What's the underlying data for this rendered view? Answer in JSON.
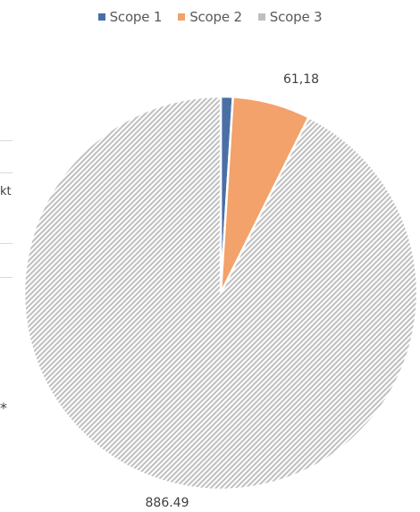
{
  "chart_data": {
    "type": "pie",
    "title": "",
    "series": [
      {
        "name": "Scope 1",
        "value": 9.5,
        "color": "#4a6fa5"
      },
      {
        "name": "Scope 2",
        "value": 61.18,
        "color": "#f2a26a"
      },
      {
        "name": "Scope 3",
        "value": 886.49,
        "color": "#bfbfbf"
      }
    ],
    "data_labels": {
      "scope2": "61,18",
      "scope3": "886.49"
    },
    "legend_position": "top",
    "fill_pattern": "diagonal-hatch"
  },
  "legend": {
    "items": [
      {
        "label": "Scope 1",
        "color": "#4a6fa5"
      },
      {
        "label": "Scope 2",
        "color": "#f2a26a"
      },
      {
        "label": "Scope 3",
        "color": "#bfbfbf"
      }
    ]
  },
  "background": {
    "fragment_text": "kt",
    "fragment_mark": "*"
  }
}
